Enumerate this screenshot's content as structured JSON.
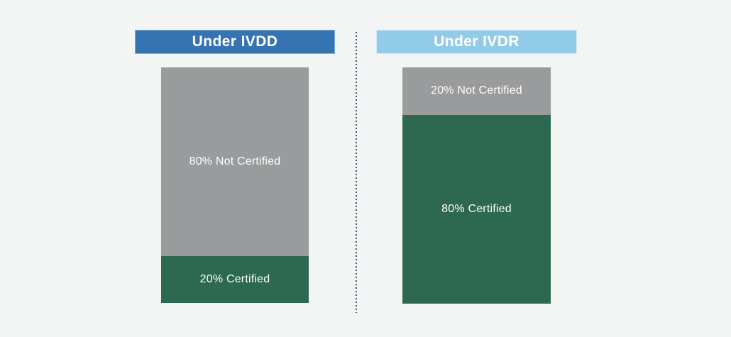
{
  "canvas": {
    "background": "#f3f4f4"
  },
  "divider": {
    "color": "#4c4c74"
  },
  "panels": [
    {
      "id": "ivdd",
      "header": {
        "label": "Under IVDD",
        "bg": "#3573b2",
        "border": "#85aed8",
        "text_color": "#ffffff"
      },
      "segments": [
        {
          "label": "80% Not Certified",
          "value": 80,
          "color": "#999b9d",
          "status": "not-certified"
        },
        {
          "label": "20% Certified",
          "value": 20,
          "color": "#2d6950",
          "status": "certified"
        }
      ]
    },
    {
      "id": "ivdr",
      "header": {
        "label": "Under IVDR",
        "bg": "#92cbe9",
        "border": "#d3e9f6",
        "text_color": "#ffffff"
      },
      "segments": [
        {
          "label": "20% Not Certified",
          "value": 20,
          "color": "#999b9d",
          "status": "not-certified"
        },
        {
          "label": "80% Certified",
          "value": 80,
          "color": "#2d6950",
          "status": "certified"
        }
      ]
    }
  ],
  "chart_data": {
    "type": "bar",
    "subtype": "stacked_100_percent",
    "orientation": "vertical",
    "categories": [
      "Under IVDD",
      "Under IVDR"
    ],
    "series": [
      {
        "name": "Not Certified",
        "values": [
          80,
          20
        ],
        "color": "#999b9d"
      },
      {
        "name": "Certified",
        "values": [
          20,
          80
        ],
        "color": "#2d6950"
      }
    ],
    "value_unit": "%",
    "ylim": [
      0,
      100
    ],
    "grid": false,
    "legend_position": "none",
    "annotations": [
      "80% Not Certified",
      "20% Certified",
      "20% Not Certified",
      "80% Certified"
    ],
    "title": "",
    "xlabel": "",
    "ylabel": ""
  }
}
